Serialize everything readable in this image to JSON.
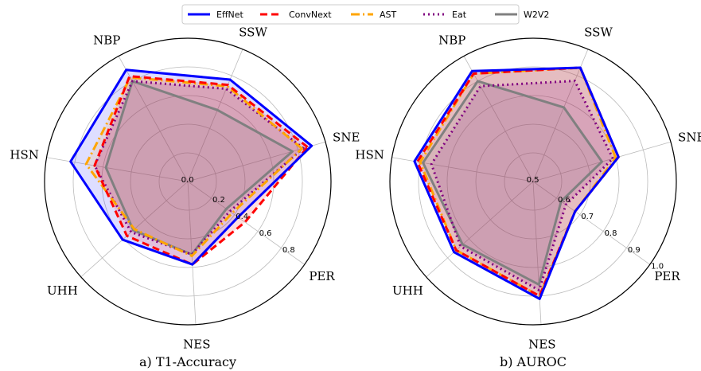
{
  "legend": {
    "placement": "top-center",
    "entries": [
      {
        "name": "EffNet",
        "color": "#0000ff",
        "dash": "solid"
      },
      {
        "name": "ConvNext",
        "color": "#ff0000",
        "dash": "dashed"
      },
      {
        "name": "AST",
        "color": "#ffa500",
        "dash": "dashdot"
      },
      {
        "name": "Eat",
        "color": "#800080",
        "dash": "dotted"
      },
      {
        "name": "W2V2",
        "color": "#808080",
        "dash": "solid"
      }
    ]
  },
  "chart_data": [
    {
      "type": "radar",
      "title": "a) T1-Accuracy",
      "categories": [
        "SNE",
        "SSW",
        "NBP",
        "HSN",
        "UHH",
        "NES",
        "PER"
      ],
      "rlim": [
        0.0,
        1.0
      ],
      "rticks": [
        "0.0",
        "0.2",
        "0.4",
        "0.6",
        "0.8"
      ],
      "rtick_values": [
        0.0,
        0.2,
        0.4,
        0.6,
        0.8
      ],
      "grid": true,
      "series": [
        {
          "name": "EffNet",
          "values": [
            0.9,
            0.77,
            0.89,
            0.83,
            0.61,
            0.58,
            0.43
          ]
        },
        {
          "name": "ConvNext",
          "values": [
            0.87,
            0.73,
            0.84,
            0.66,
            0.57,
            0.58,
            0.49
          ]
        },
        {
          "name": "AST",
          "values": [
            0.83,
            0.72,
            0.83,
            0.72,
            0.5,
            0.52,
            0.38
          ]
        },
        {
          "name": "Eat",
          "values": [
            0.84,
            0.7,
            0.8,
            0.66,
            0.53,
            0.51,
            0.36
          ]
        },
        {
          "name": "W2V2",
          "values": [
            0.76,
            0.54,
            0.8,
            0.58,
            0.51,
            0.51,
            0.33
          ]
        }
      ]
    },
    {
      "type": "radar",
      "title": "b) AUROC",
      "categories": [
        "SNE",
        "SSW",
        "NBP",
        "HSN",
        "UHH",
        "NES",
        "PER"
      ],
      "rlim": [
        0.5,
        1.0
      ],
      "rticks": [
        "0.5",
        "0.6",
        "0.7",
        "0.8",
        "0.9",
        "1.0"
      ],
      "rtick_values": [
        0.5,
        0.6,
        0.7,
        0.8,
        0.9,
        1.0
      ],
      "grid": true,
      "series": [
        {
          "name": "EffNet",
          "values": [
            0.81,
            0.93,
            0.94,
            0.92,
            0.87,
            0.91,
            0.68
          ]
        },
        {
          "name": "ConvNext",
          "values": [
            0.81,
            0.93,
            0.93,
            0.91,
            0.86,
            0.9,
            0.68
          ]
        },
        {
          "name": "AST",
          "values": [
            0.8,
            0.93,
            0.93,
            0.9,
            0.86,
            0.9,
            0.68
          ]
        },
        {
          "name": "Eat",
          "values": [
            0.79,
            0.88,
            0.88,
            0.86,
            0.84,
            0.88,
            0.64
          ]
        },
        {
          "name": "W2V2",
          "values": [
            0.75,
            0.78,
            0.9,
            0.89,
            0.83,
            0.86,
            0.62
          ]
        }
      ]
    }
  ]
}
